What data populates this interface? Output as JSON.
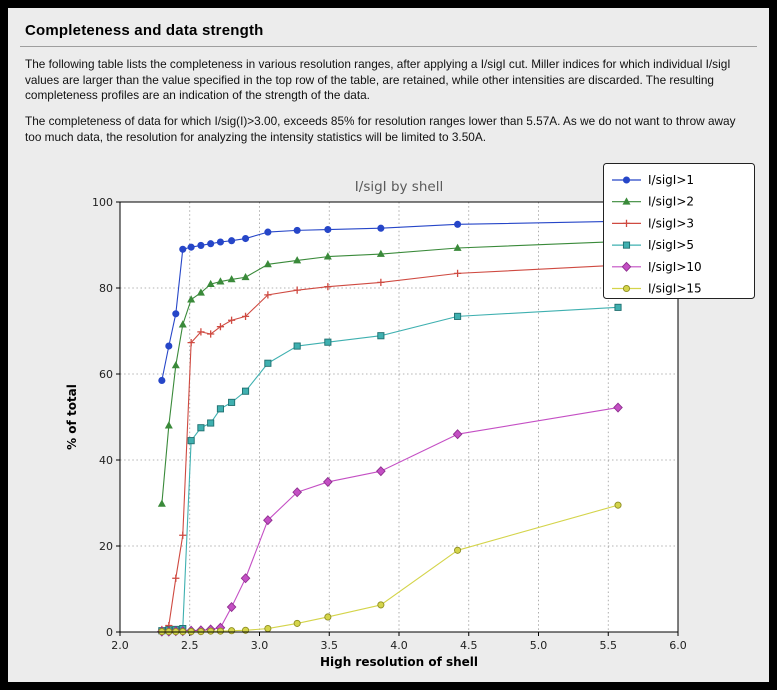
{
  "page": {
    "title": "Completeness and data strength",
    "paragraphs": [
      "The following table lists the completeness in various resolution ranges, after applying a I/sigI cut. Miller indices for which individual I/sigI values are larger than the value specified in the top row of the table, are retained, while other intensities are discarded. The resulting completeness profiles are an indication of the strength of the data.",
      "The completeness of data for which I/sig(I)>3.00, exceeds  85% for resolution ranges lower than 5.57A. As we do not want to throw away too much data, the resolution for analyzing the intensity statistics will be limited to 3.50A."
    ]
  },
  "chart_data": {
    "type": "line",
    "title": "I/sigI by shell",
    "xlabel": "High resolution of shell",
    "ylabel": "% of total",
    "xlim": [
      2.0,
      6.0
    ],
    "ylim": [
      0,
      100
    ],
    "xticks": [
      "2.0",
      "2.5",
      "3.0",
      "3.5",
      "4.0",
      "4.5",
      "5.0",
      "5.5",
      "6.0"
    ],
    "yticks": [
      "0",
      "20",
      "40",
      "60",
      "80",
      "100"
    ],
    "grid": true,
    "legend_position": "upper-right",
    "x": [
      2.3,
      2.35,
      2.4,
      2.45,
      2.51,
      2.58,
      2.65,
      2.72,
      2.8,
      2.9,
      3.06,
      3.27,
      3.49,
      3.87,
      4.42,
      5.57
    ],
    "series": [
      {
        "name": "I/sigI>1",
        "color": "#2646c8",
        "marker": "circle",
        "values": [
          58.5,
          66.5,
          74.0,
          89.0,
          89.5,
          89.9,
          90.3,
          90.7,
          91.0,
          91.5,
          93.0,
          93.4,
          93.6,
          93.9,
          94.8,
          95.5
        ]
      },
      {
        "name": "I/sigI>2",
        "color": "#3a8a3a",
        "marker": "triangle",
        "values": [
          29.8,
          48.0,
          62.0,
          71.5,
          77.3,
          78.9,
          80.9,
          81.5,
          82.0,
          82.5,
          85.5,
          86.4,
          87.3,
          87.9,
          89.3,
          90.8
        ]
      },
      {
        "name": "I/sigI>3",
        "color": "#cf4a41",
        "marker": "plus",
        "values": [
          0.6,
          1.5,
          12.5,
          22.5,
          67.3,
          69.8,
          69.3,
          71.0,
          72.5,
          73.4,
          78.4,
          79.5,
          80.3,
          81.3,
          83.4,
          85.3
        ]
      },
      {
        "name": "I/sigI>5",
        "color": "#3fb0b0",
        "edge": "#1f6f6f",
        "marker": "square",
        "values": [
          0.3,
          0.5,
          0.6,
          0.8,
          44.5,
          47.5,
          48.6,
          51.9,
          53.4,
          56.0,
          62.5,
          66.5,
          67.4,
          68.9,
          73.4,
          75.5
        ]
      },
      {
        "name": "I/sigI>10",
        "color": "#c44fc4",
        "edge": "#8f2f8f",
        "marker": "diamond",
        "values": [
          0.1,
          0.1,
          0.2,
          0.2,
          0.3,
          0.4,
          0.6,
          1.0,
          5.8,
          12.5,
          26.0,
          32.5,
          34.9,
          37.4,
          46.0,
          52.2
        ]
      },
      {
        "name": "I/sigI>15",
        "color": "#d4d44a",
        "edge": "#8f8f22",
        "marker": "circle",
        "values": [
          0.1,
          0.1,
          0.1,
          0.1,
          0.1,
          0.1,
          0.2,
          0.2,
          0.3,
          0.4,
          0.8,
          2.0,
          3.5,
          6.3,
          19.0,
          29.5
        ]
      }
    ]
  }
}
